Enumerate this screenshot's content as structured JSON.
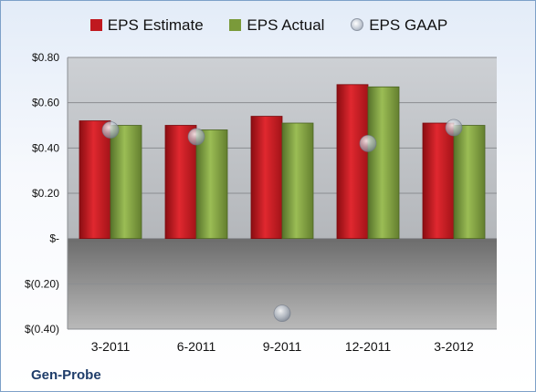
{
  "chart_data": {
    "type": "bar",
    "categories": [
      "3-2011",
      "6-2011",
      "9-2011",
      "12-2011",
      "3-2012"
    ],
    "series": [
      {
        "name": "EPS Estimate",
        "values": [
          0.52,
          0.5,
          0.54,
          0.68,
          0.51
        ],
        "color": "#c0191f",
        "kind": "bar"
      },
      {
        "name": "EPS Actual",
        "values": [
          0.5,
          0.48,
          0.51,
          0.67,
          0.5
        ],
        "color": "#7a9a3a",
        "kind": "bar"
      },
      {
        "name": "EPS GAAP",
        "values": [
          0.48,
          0.45,
          -0.33,
          0.42,
          0.49
        ],
        "color": "#b9c1cc",
        "kind": "marker"
      }
    ],
    "ylim": [
      -0.4,
      0.8
    ],
    "yticks": [
      {
        "value": 0.8,
        "label": "$0.80"
      },
      {
        "value": 0.6,
        "label": "$0.60"
      },
      {
        "value": 0.4,
        "label": "$0.40"
      },
      {
        "value": 0.2,
        "label": "$0.20"
      },
      {
        "value": 0.0,
        "label": "$-"
      },
      {
        "value": -0.2,
        "label": "$(0.20)"
      },
      {
        "value": -0.4,
        "label": "$(0.40)"
      }
    ],
    "grid": true,
    "legend_position": "top",
    "company": "Gen-Probe"
  }
}
